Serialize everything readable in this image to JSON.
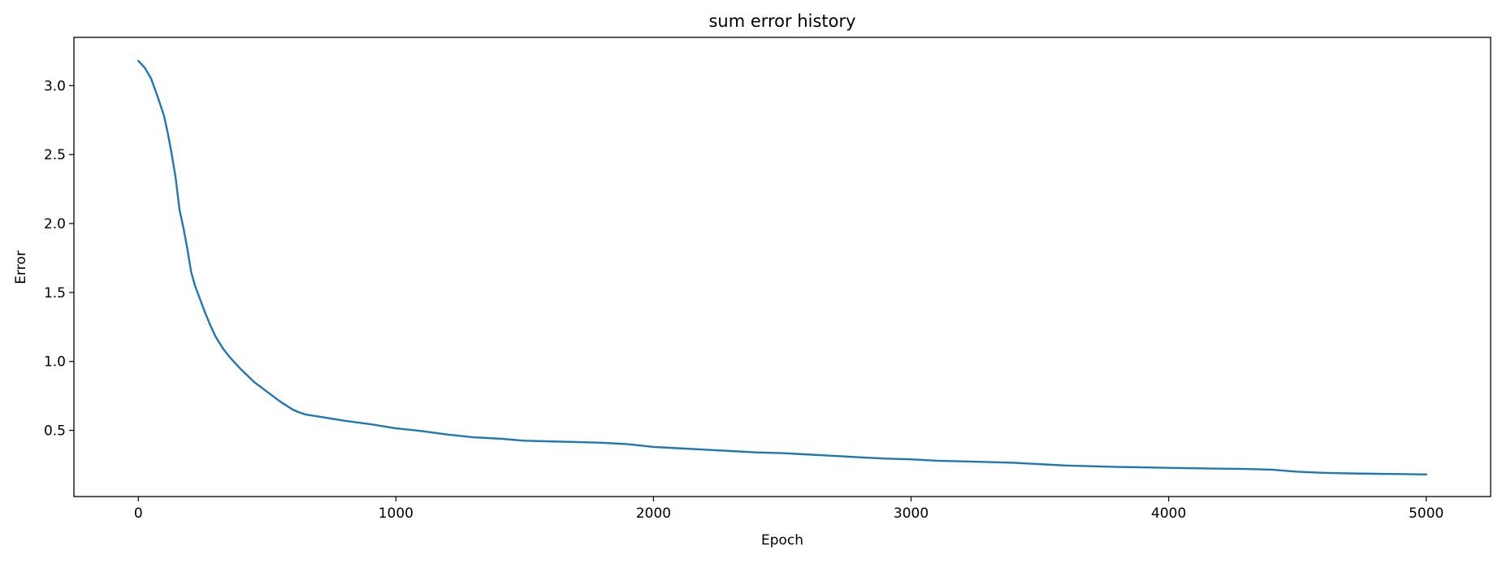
{
  "chart_data": {
    "type": "line",
    "title": "sum error history",
    "xlabel": "Epoch",
    "ylabel": "Error",
    "xlim": [
      -250,
      5250
    ],
    "ylim": [
      0.02,
      3.35
    ],
    "xticks": [
      0,
      1000,
      2000,
      3000,
      4000,
      5000
    ],
    "xtick_labels": [
      "0",
      "1000",
      "2000",
      "3000",
      "4000",
      "5000"
    ],
    "yticks": [
      0.5,
      1.0,
      1.5,
      2.0,
      2.5,
      3.0
    ],
    "ytick_labels": [
      "0.5",
      "1.0",
      "1.5",
      "2.0",
      "2.5",
      "3.0"
    ],
    "grid": false,
    "series": [
      {
        "color": "#1f77b4",
        "x": [
          0,
          25,
          50,
          75,
          100,
          115,
          130,
          145,
          160,
          175,
          190,
          205,
          220,
          240,
          260,
          280,
          300,
          330,
          360,
          400,
          450,
          500,
          550,
          600,
          625,
          650,
          700,
          800,
          900,
          1000,
          1100,
          1200,
          1300,
          1400,
          1500,
          1600,
          1700,
          1800,
          1900,
          2000,
          2100,
          2200,
          2300,
          2400,
          2500,
          2600,
          2700,
          2800,
          2900,
          3000,
          3100,
          3200,
          3300,
          3400,
          3500,
          3600,
          3700,
          3800,
          3900,
          4000,
          4100,
          4200,
          4300,
          4400,
          4500,
          4600,
          4700,
          4800,
          4900,
          5000
        ],
        "y": [
          3.18,
          3.13,
          3.05,
          2.92,
          2.78,
          2.65,
          2.5,
          2.33,
          2.1,
          1.97,
          1.82,
          1.65,
          1.55,
          1.45,
          1.35,
          1.26,
          1.18,
          1.09,
          1.02,
          0.94,
          0.85,
          0.78,
          0.71,
          0.65,
          0.63,
          0.615,
          0.6,
          0.57,
          0.545,
          0.515,
          0.495,
          0.47,
          0.45,
          0.44,
          0.425,
          0.42,
          0.415,
          0.41,
          0.4,
          0.38,
          0.37,
          0.36,
          0.35,
          0.34,
          0.335,
          0.325,
          0.315,
          0.305,
          0.295,
          0.29,
          0.28,
          0.275,
          0.27,
          0.265,
          0.255,
          0.245,
          0.24,
          0.235,
          0.232,
          0.228,
          0.225,
          0.222,
          0.22,
          0.215,
          0.2,
          0.192,
          0.188,
          0.185,
          0.183,
          0.18
        ]
      }
    ]
  }
}
